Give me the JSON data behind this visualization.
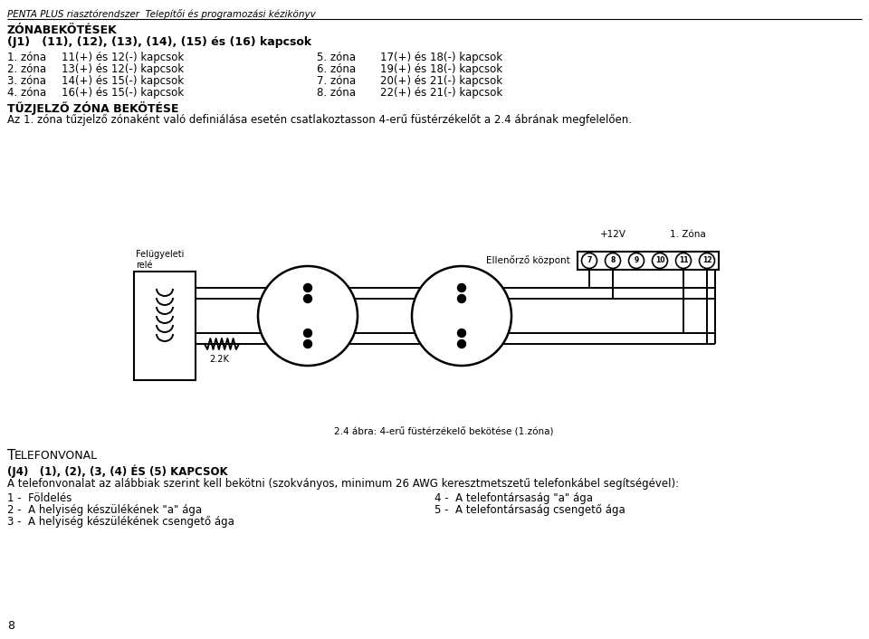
{
  "title_header": "PENTA PLUS riasztórendszer  Telepítői és programozási kézikönyv",
  "section1_title": "ZÓNABEKÖTÉSEK",
  "section1_subtitle": "(J1)   (11), (12), (13), (14), (15) és (16) kapcsok",
  "zone_rows": [
    [
      "1. zóna",
      "11(+) és 12(-) kapcsok",
      "5. zóna",
      "17(+) és 18(-) kapcsok"
    ],
    [
      "2. zóna",
      "13(+) és 12(-) kapcsok",
      "6. zóna",
      "19(+) és 18(-) kapcsok"
    ],
    [
      "3. zóna",
      "14(+) és 15(-) kapcsok",
      "7. zóna",
      "20(+) és 21(-) kapcsok"
    ],
    [
      "4. zóna",
      "16(+) és 15(-) kapcsok",
      "8. zóna",
      "22(+) és 21(-) kapcsok"
    ]
  ],
  "section2_title": "TŰZJELZŐ ZÓNA BEKÖTÉSE",
  "section2_text": "Az 1. zóna tűzjelző zónaként való definiálása esetén csatlakoztasson 4-erű füstérzékelőt a 2.4 ábrának megfelelően.",
  "diagram_label": "Ellenőrző központ",
  "diagram_label_left": "Felügyeleti\nrelé",
  "diagram_caption": "2.4 ábra: 4-erű füstérzékelő bekötése (1.zóna)",
  "voltage_label": "+12V",
  "zone_label": "1. Zóna",
  "terminal_numbers": [
    "7",
    "8",
    "9",
    "10",
    "11",
    "12"
  ],
  "resistor_label": "2.2K",
  "section3_title": "TELEFONVONAL",
  "section3_subtitle": "(J4)   (1), (2), (3, (4) ÉS (5) KAPCSOK",
  "section3_text": "A telefonvonalat az alábbiak szerint kell bekötni (szokványos, minimum 26 AWG keresztmetszetű telefonkábel segítségével):",
  "phone_items_left": [
    "1 -  Földelés",
    "2 -  A helyiség készülékének \"a\" ága",
    "3 -  A helyiség készülékének csengető ága"
  ],
  "phone_items_right": [
    "4 -  A telefontársaság \"a\" ága",
    "5 -  A telefontársaság csengető ága"
  ],
  "page_number": "8",
  "bg_color": "#ffffff",
  "text_color": "#000000"
}
